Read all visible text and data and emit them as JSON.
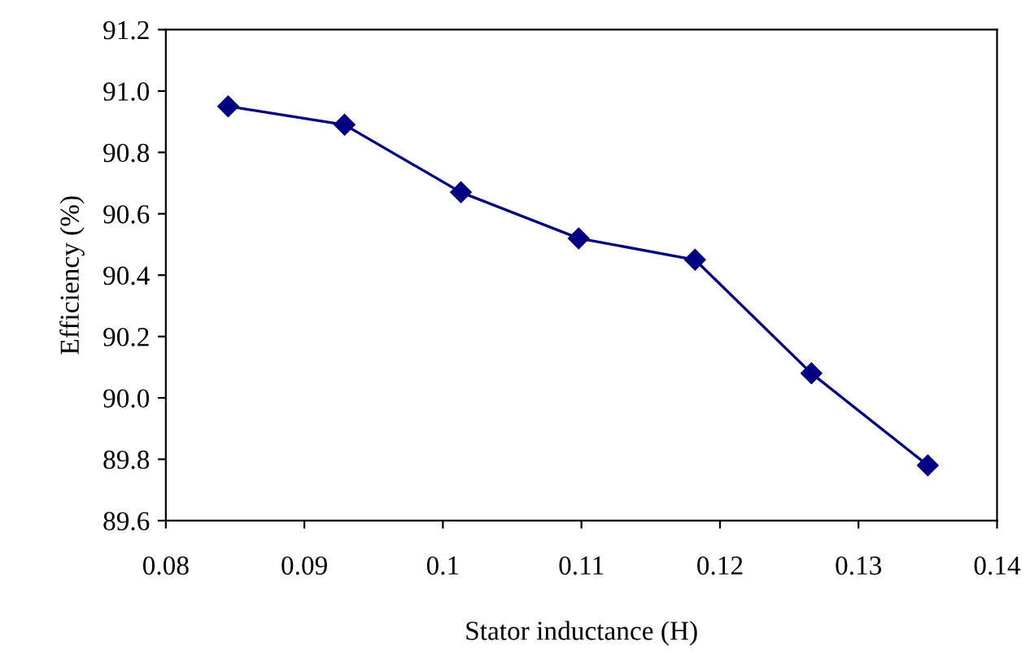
{
  "chart_data": {
    "type": "line",
    "xlabel": "Stator inductance (H)",
    "ylabel": "Efficiency (%)",
    "x": [
      0.0845,
      0.0929,
      0.1013,
      0.1098,
      0.1182,
      0.1266,
      0.135
    ],
    "series": [
      {
        "color": "#000080",
        "values": [
          90.95,
          90.89,
          90.67,
          90.52,
          90.45,
          90.08,
          89.78
        ]
      }
    ],
    "xlim": [
      0.08,
      0.14
    ],
    "xticks": [
      0.08,
      0.09,
      0.1,
      0.11,
      0.12,
      0.13,
      0.14
    ],
    "ylim": [
      89.6,
      91.2
    ],
    "yticks": [
      {
        "value": 89.6,
        "label": "89.6"
      },
      {
        "value": 89.8,
        "label": "89.8"
      },
      {
        "value": 90.0,
        "label": "90.0"
      },
      {
        "value": 90.2,
        "label": "90.2"
      },
      {
        "value": 90.4,
        "label": "90.4"
      },
      {
        "value": 90.6,
        "label": "90.6"
      },
      {
        "value": 90.8,
        "label": "90.8"
      },
      {
        "value": 91.0,
        "label": "91.0"
      },
      {
        "value": 91.2,
        "label": "91.2"
      }
    ],
    "marker": "diamond",
    "line_style": "solid",
    "grid": false
  }
}
